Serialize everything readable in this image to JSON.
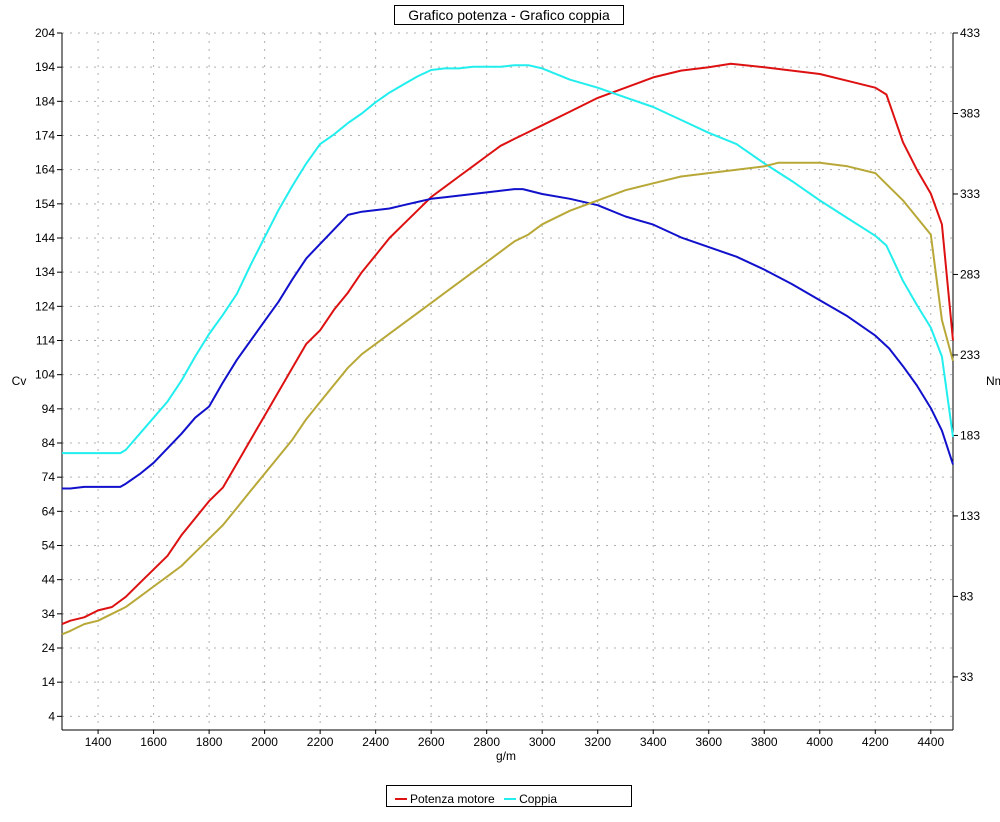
{
  "chart_data": {
    "type": "line",
    "title": "Grafico potenza - Grafico coppia",
    "xlabel": "g/m",
    "ylabel_left": "Cv",
    "ylabel_right": "Nm",
    "xlim": [
      1270,
      4480
    ],
    "ylim_left": [
      0,
      204
    ],
    "ylim_right": [
      0,
      433
    ],
    "x_ticks": [
      1400,
      1600,
      1800,
      2000,
      2200,
      2400,
      2600,
      2800,
      3000,
      3200,
      3400,
      3600,
      3800,
      4000,
      4200,
      4400
    ],
    "y_ticks_left": [
      4,
      14,
      24,
      34,
      44,
      54,
      64,
      74,
      84,
      94,
      104,
      114,
      124,
      134,
      144,
      154,
      164,
      174,
      184,
      194,
      204
    ],
    "y_ticks_right": [
      33,
      83,
      133,
      183,
      233,
      283,
      333,
      383,
      433
    ],
    "grid": true,
    "legend_position": "bottom",
    "legend": [
      {
        "label": "Potenza motore",
        "color": "#dd1111"
      },
      {
        "label": "Coppia",
        "color": "#22eeee"
      }
    ],
    "series": [
      {
        "axis": "left",
        "color": "#dd1111",
        "x": [
          1270,
          1300,
          1350,
          1400,
          1450,
          1500,
          1550,
          1600,
          1650,
          1700,
          1750,
          1800,
          1850,
          1900,
          1950,
          2000,
          2050,
          2100,
          2150,
          2200,
          2250,
          2300,
          2350,
          2400,
          2450,
          2500,
          2550,
          2600,
          2650,
          2700,
          2750,
          2800,
          2850,
          2900,
          2950,
          3000,
          3100,
          3200,
          3300,
          3400,
          3500,
          3600,
          3680,
          3800,
          3900,
          4000,
          4100,
          4200,
          4240,
          4300,
          4350,
          4400,
          4440,
          4480
        ],
        "y": [
          31,
          32,
          33,
          35,
          36,
          39,
          43,
          47,
          51,
          57,
          62,
          67,
          71,
          78,
          85,
          92,
          99,
          106,
          113,
          117,
          123,
          128,
          134,
          139,
          144,
          148,
          152,
          156,
          159,
          162,
          165,
          168,
          171,
          173,
          175,
          177,
          181,
          185,
          188,
          191,
          193,
          194,
          195,
          194,
          193,
          192,
          190,
          188,
          186,
          172,
          164,
          157,
          148,
          114
        ]
      },
      {
        "axis": "right",
        "color": "#22eeee",
        "x": [
          1270,
          1300,
          1350,
          1400,
          1450,
          1480,
          1500,
          1550,
          1600,
          1650,
          1700,
          1750,
          1800,
          1850,
          1900,
          1950,
          2000,
          2050,
          2100,
          2150,
          2200,
          2250,
          2300,
          2350,
          2400,
          2450,
          2500,
          2550,
          2600,
          2650,
          2700,
          2750,
          2800,
          2850,
          2900,
          2950,
          3000,
          3100,
          3200,
          3300,
          3400,
          3500,
          3600,
          3700,
          3800,
          3900,
          4000,
          4100,
          4200,
          4240,
          4300,
          4350,
          4400,
          4440,
          4480
        ],
        "y": [
          172,
          172,
          172,
          172,
          172,
          172,
          174,
          184,
          194,
          204,
          217,
          232,
          246,
          258,
          271,
          289,
          306,
          323,
          338,
          352,
          364,
          370,
          377,
          383,
          390,
          396,
          401,
          406,
          410,
          411,
          411,
          412,
          412,
          412,
          413,
          413,
          411,
          404,
          399,
          393,
          387,
          379,
          371,
          364,
          352,
          341,
          329,
          318,
          307,
          301,
          279,
          264,
          250,
          232,
          182
        ]
      },
      {
        "axis": "right",
        "color": "#1111cc",
        "x": [
          1270,
          1300,
          1350,
          1400,
          1450,
          1480,
          1500,
          1550,
          1600,
          1650,
          1700,
          1750,
          1800,
          1850,
          1900,
          1950,
          2000,
          2050,
          2100,
          2150,
          2200,
          2250,
          2300,
          2350,
          2400,
          2450,
          2500,
          2550,
          2600,
          2650,
          2700,
          2750,
          2800,
          2850,
          2900,
          2930,
          3000,
          3100,
          3200,
          3300,
          3400,
          3500,
          3600,
          3700,
          3800,
          3900,
          4000,
          4100,
          4200,
          4250,
          4300,
          4350,
          4400,
          4440,
          4480
        ],
        "y": [
          150,
          150,
          151,
          151,
          151,
          151,
          153,
          159,
          166,
          175,
          184,
          194,
          201,
          216,
          230,
          242,
          254,
          266,
          280,
          293,
          302,
          311,
          320,
          322,
          323,
          324,
          326,
          328,
          330,
          331,
          332,
          333,
          334,
          335,
          336,
          336,
          333,
          330,
          326,
          319,
          314,
          306,
          300,
          294,
          286,
          277,
          267,
          257,
          245,
          237,
          226,
          214,
          200,
          186,
          165
        ]
      },
      {
        "axis": "left",
        "color": "#b8a838",
        "x": [
          1270,
          1300,
          1350,
          1400,
          1450,
          1500,
          1550,
          1600,
          1650,
          1700,
          1750,
          1800,
          1850,
          1900,
          1950,
          2000,
          2050,
          2100,
          2150,
          2200,
          2250,
          2300,
          2350,
          2400,
          2450,
          2500,
          2550,
          2600,
          2650,
          2700,
          2750,
          2800,
          2850,
          2900,
          2950,
          3000,
          3100,
          3200,
          3300,
          3400,
          3500,
          3600,
          3700,
          3800,
          3850,
          3900,
          4000,
          4100,
          4200,
          4250,
          4300,
          4350,
          4400,
          4440,
          4480
        ],
        "y": [
          28,
          29,
          31,
          32,
          34,
          36,
          39,
          42,
          45,
          48,
          52,
          56,
          60,
          65,
          70,
          75,
          80,
          85,
          91,
          96,
          101,
          106,
          110,
          113,
          116,
          119,
          122,
          125,
          128,
          131,
          134,
          137,
          140,
          143,
          145,
          148,
          152,
          155,
          158,
          160,
          162,
          163,
          164,
          165,
          166,
          166,
          166,
          165,
          163,
          159,
          155,
          150,
          145,
          120,
          108
        ]
      }
    ]
  }
}
